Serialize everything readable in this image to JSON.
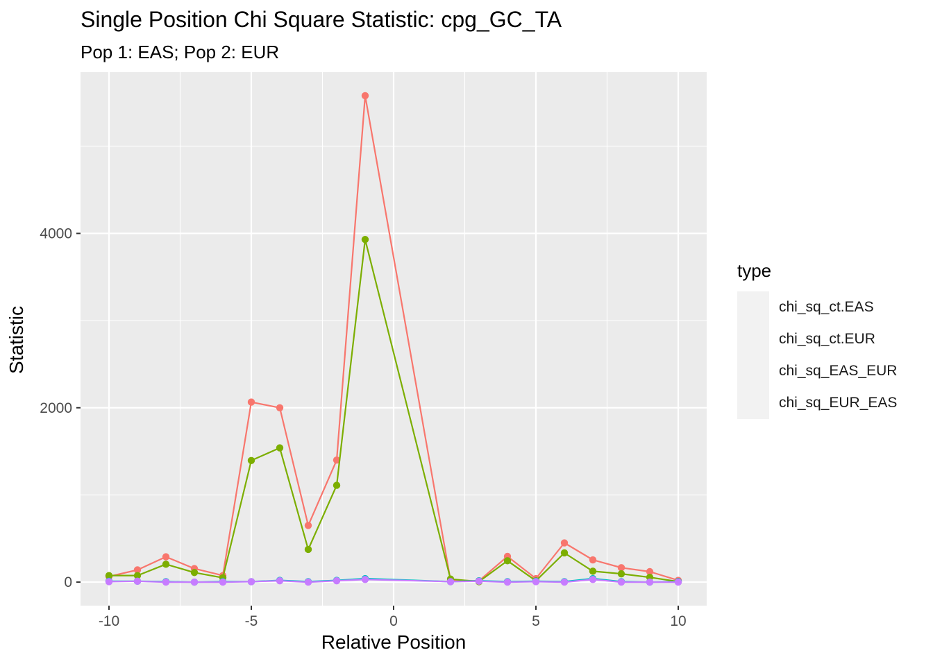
{
  "chart_data": {
    "type": "line",
    "title": "Single Position Chi Square Statistic: cpg_GC_TA",
    "subtitle": "Pop 1: EAS; Pop 2: EUR",
    "xlabel": "Relative Position",
    "ylabel": "Statistic",
    "xlim": [
      -11,
      11
    ],
    "ylim": [
      -270,
      5850
    ],
    "x_ticks": [
      -10,
      -5,
      0,
      5,
      10
    ],
    "x_tick_labels": [
      "-10",
      "-5",
      "0",
      "5",
      "10"
    ],
    "y_ticks": [
      0,
      2000,
      4000
    ],
    "y_tick_labels": [
      "0",
      "2000",
      "4000"
    ],
    "legend_title": "type",
    "legend_position": "right",
    "x": [
      -10,
      -9,
      -8,
      -7,
      -6,
      -5,
      -4,
      -3,
      -2,
      -1,
      2,
      3,
      4,
      5,
      6,
      7,
      8,
      9,
      10
    ],
    "series": [
      {
        "name": "chi_sq_ct.EAS",
        "color": "#F8766D",
        "values": [
          65,
          140,
          290,
          155,
          75,
          2065,
          2000,
          650,
          1400,
          5580,
          20,
          15,
          295,
          40,
          450,
          255,
          165,
          120,
          20
        ]
      },
      {
        "name": "chi_sq_ct.EUR",
        "color": "#7CAE00",
        "values": [
          75,
          75,
          205,
          110,
          50,
          1395,
          1540,
          375,
          1110,
          3930,
          35,
          5,
          245,
          15,
          335,
          125,
          95,
          55,
          5
        ]
      },
      {
        "name": "chi_sq_EAS_EUR",
        "color": "#00BFC4",
        "values": [
          10,
          10,
          5,
          0,
          5,
          5,
          20,
          5,
          20,
          40,
          5,
          15,
          5,
          10,
          5,
          40,
          5,
          0,
          5
        ]
      },
      {
        "name": "chi_sq_EUR_EAS",
        "color": "#C77CFF",
        "values": [
          5,
          10,
          0,
          0,
          0,
          5,
          15,
          0,
          15,
          30,
          5,
          10,
          0,
          5,
          0,
          30,
          0,
          0,
          0
        ]
      }
    ]
  }
}
